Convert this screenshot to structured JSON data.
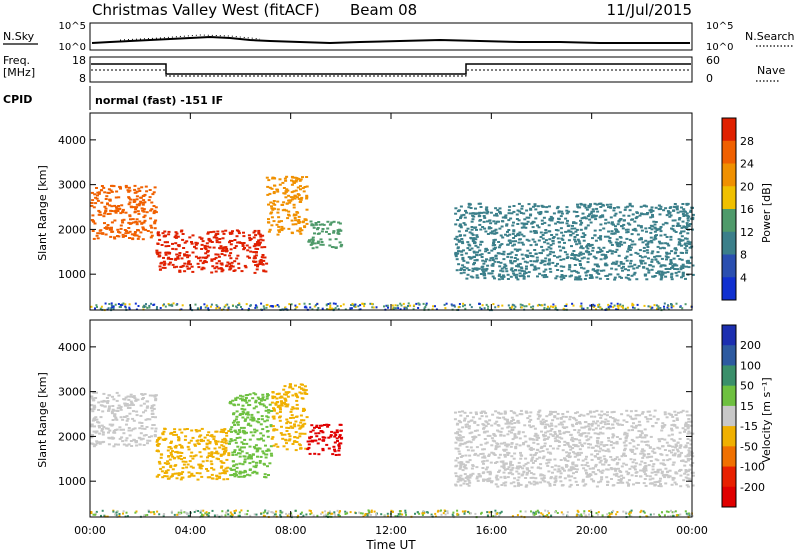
{
  "header": {
    "title": "Christmas Valley West (fitACF)",
    "beam": "Beam 08",
    "date": "11/Jul/2015"
  },
  "strips": {
    "nsky": {
      "label": "N.Sky",
      "tick_top": "10^5",
      "tick_bottom": "10^0"
    },
    "nsearch": {
      "label": "N.Search",
      "tick_top": "10^5",
      "tick_bottom": "10^0"
    },
    "freq": {
      "label_top": "Freq.",
      "label_bottom": "[MHz]",
      "tick_top": "18",
      "tick_bottom": "8"
    },
    "nave": {
      "label": "Nave",
      "tick_top": "60",
      "tick_bottom": "0"
    },
    "cpid": {
      "label": "CPID",
      "mode": "normal (fast) -151 IF"
    }
  },
  "chart_data": [
    {
      "type": "heatmap",
      "name": "Power",
      "ylabel": "Slant Range [km]",
      "xlabel": "Time UT",
      "xlim": [
        0,
        24
      ],
      "ylim": [
        200,
        4600
      ],
      "x_ticks": [
        "00:00",
        "04:00",
        "08:00",
        "12:00",
        "16:00",
        "20:00",
        "00:00"
      ],
      "y_ticks": [
        1000,
        2000,
        3000,
        4000
      ],
      "colorbar": {
        "label": "Power [dB]",
        "ticks": [
          4,
          8,
          12,
          16,
          20,
          24,
          28
        ],
        "range": [
          0,
          32
        ],
        "colors": [
          "#1030d0",
          "#2a4fb0",
          "#3b7f8a",
          "#4f9a6a",
          "#f0c000",
          "#f09000",
          "#f06000",
          "#e02000"
        ]
      },
      "echo_regions": [
        {
          "t_start": 0.0,
          "t_end": 2.6,
          "range_low": 1800,
          "range_high": 3000,
          "color": "#f06000"
        },
        {
          "t_start": 2.6,
          "t_end": 7.0,
          "range_low": 1050,
          "range_high": 2000,
          "color": "#e02000"
        },
        {
          "t_start": 7.0,
          "t_end": 8.6,
          "range_low": 1900,
          "range_high": 3200,
          "color": "#f09000"
        },
        {
          "t_start": 8.6,
          "t_end": 10.0,
          "range_low": 1600,
          "range_high": 2200,
          "color": "#4f9a6a"
        },
        {
          "t_start": 14.5,
          "t_end": 24.0,
          "range_low": 900,
          "range_high": 2600,
          "color": "#3b7f8a"
        }
      ]
    },
    {
      "type": "heatmap",
      "name": "Velocity",
      "ylabel": "Slant Range [km]",
      "xlabel": "Time UT",
      "xlim": [
        0,
        24
      ],
      "ylim": [
        200,
        4600
      ],
      "x_ticks": [
        "00:00",
        "04:00",
        "08:00",
        "12:00",
        "16:00",
        "20:00",
        "00:00"
      ],
      "y_ticks": [
        1000,
        2000,
        3000,
        4000
      ],
      "colorbar": {
        "label": "Velocity [m s⁻¹]",
        "ticks": [
          "200",
          "100",
          "50",
          "15",
          "-15",
          "-50",
          "-100",
          "-200"
        ],
        "colors": [
          "#1c2fb0",
          "#2d5aa0",
          "#3a8f6a",
          "#6ec040",
          "#c8c8c8",
          "#f0b000",
          "#f07000",
          "#e82000",
          "#e00000"
        ]
      },
      "echo_regions": [
        {
          "t_start": 0.0,
          "t_end": 2.6,
          "range_low": 1800,
          "range_high": 3000,
          "color": "#c8c8c8"
        },
        {
          "t_start": 2.6,
          "t_end": 5.5,
          "range_low": 1050,
          "range_high": 2200,
          "color": "#f0b000"
        },
        {
          "t_start": 5.5,
          "t_end": 7.2,
          "range_low": 1100,
          "range_high": 3000,
          "color": "#6ec040"
        },
        {
          "t_start": 7.2,
          "t_end": 8.6,
          "range_low": 1700,
          "range_high": 3200,
          "color": "#f0b000"
        },
        {
          "t_start": 8.6,
          "t_end": 10.0,
          "range_low": 1600,
          "range_high": 2300,
          "color": "#e00000"
        },
        {
          "t_start": 14.5,
          "t_end": 24.0,
          "range_low": 900,
          "range_high": 2600,
          "color": "#c8c8c8"
        }
      ]
    }
  ]
}
